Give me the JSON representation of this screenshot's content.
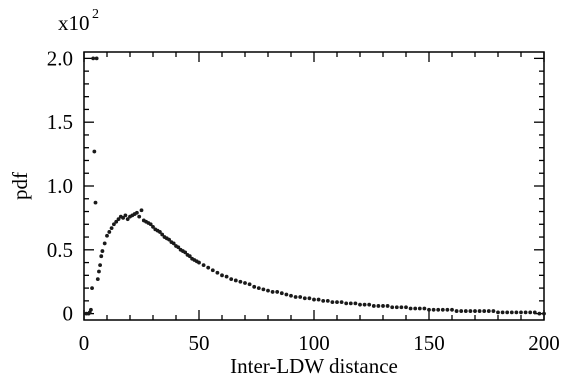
{
  "chart_data": {
    "type": "scatter",
    "xlabel": "Inter-LDW distance",
    "ylabel": "pdf",
    "y_multiplier": {
      "base": "x10",
      "exponent": "2"
    },
    "xlim": [
      0,
      200
    ],
    "ylim": [
      -0.05,
      2.05
    ],
    "x_ticks": [
      0,
      50,
      100,
      150,
      200
    ],
    "x_tick_labels": [
      "0",
      "50",
      "100",
      "150",
      "200"
    ],
    "y_ticks": [
      0,
      0.5,
      1.0,
      1.5,
      2.0
    ],
    "y_tick_labels": [
      "0",
      "0.5",
      "1.0",
      "1.5",
      "2.0"
    ],
    "grid": false,
    "legend": "none",
    "marker_color": "#1a1a1a",
    "series": [
      {
        "x": [
          1,
          2,
          2.5,
          3,
          3.5,
          4,
          4.5,
          5,
          5.5,
          6,
          6.5,
          7,
          7.5,
          8,
          9,
          10,
          11,
          12,
          13,
          14,
          15,
          16,
          17,
          18,
          19,
          20,
          21,
          22,
          23,
          24,
          25,
          26,
          27,
          28,
          29,
          30,
          31,
          32,
          33,
          34,
          35,
          36,
          37,
          38,
          39,
          40,
          41,
          42,
          43,
          44,
          45,
          46,
          47,
          48,
          49,
          50,
          52,
          54,
          56,
          58,
          60,
          62,
          64,
          66,
          68,
          70,
          72,
          74,
          76,
          78,
          80,
          82,
          84,
          86,
          88,
          90,
          92,
          94,
          96,
          98,
          100,
          102,
          104,
          106,
          108,
          110,
          112,
          114,
          116,
          118,
          120,
          122,
          124,
          126,
          128,
          130,
          132,
          134,
          136,
          138,
          140,
          142,
          144,
          146,
          148,
          150,
          152,
          154,
          156,
          158,
          160,
          162,
          164,
          166,
          168,
          170,
          172,
          174,
          176,
          178,
          180,
          182,
          184,
          186,
          188,
          190,
          192,
          194,
          196,
          198,
          200
        ],
        "y": [
          0.0,
          0.0,
          0.01,
          0.03,
          0.2,
          2.0,
          1.27,
          0.87,
          2.0,
          0.27,
          0.33,
          0.38,
          0.45,
          0.49,
          0.55,
          0.61,
          0.64,
          0.67,
          0.7,
          0.72,
          0.74,
          0.76,
          0.75,
          0.77,
          0.74,
          0.76,
          0.77,
          0.78,
          0.79,
          0.76,
          0.81,
          0.73,
          0.72,
          0.71,
          0.7,
          0.68,
          0.66,
          0.65,
          0.64,
          0.62,
          0.6,
          0.59,
          0.58,
          0.56,
          0.55,
          0.53,
          0.52,
          0.5,
          0.49,
          0.48,
          0.46,
          0.45,
          0.43,
          0.42,
          0.41,
          0.4,
          0.38,
          0.36,
          0.34,
          0.32,
          0.3,
          0.29,
          0.27,
          0.26,
          0.25,
          0.24,
          0.23,
          0.21,
          0.2,
          0.19,
          0.18,
          0.17,
          0.17,
          0.16,
          0.15,
          0.14,
          0.13,
          0.13,
          0.12,
          0.12,
          0.11,
          0.11,
          0.1,
          0.1,
          0.09,
          0.09,
          0.09,
          0.08,
          0.08,
          0.08,
          0.07,
          0.07,
          0.07,
          0.06,
          0.06,
          0.06,
          0.06,
          0.05,
          0.05,
          0.05,
          0.05,
          0.04,
          0.04,
          0.04,
          0.04,
          0.03,
          0.03,
          0.03,
          0.03,
          0.03,
          0.03,
          0.02,
          0.02,
          0.02,
          0.02,
          0.02,
          0.02,
          0.02,
          0.02,
          0.02,
          0.01,
          0.01,
          0.01,
          0.01,
          0.01,
          0.01,
          0.01,
          0.01,
          0.01,
          0.0,
          0.0
        ]
      }
    ]
  }
}
